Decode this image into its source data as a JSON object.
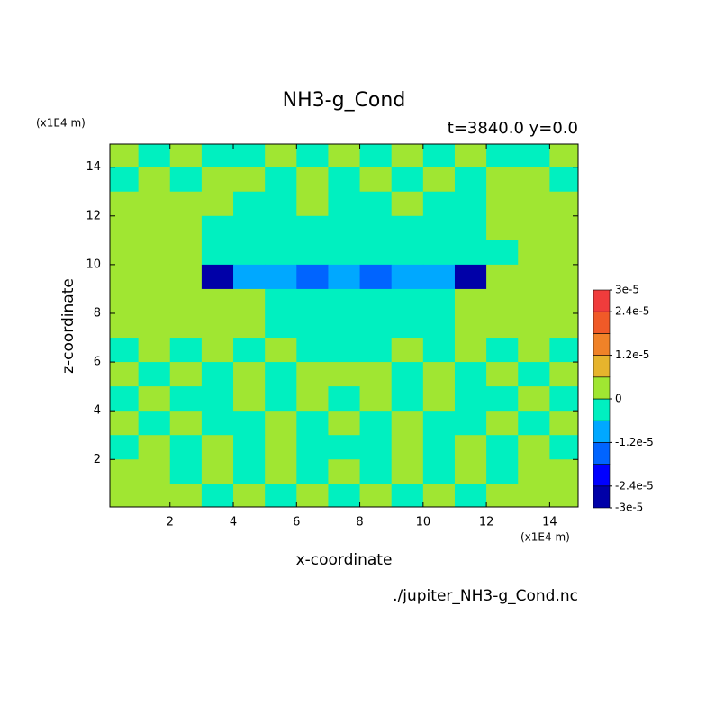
{
  "chart_data": {
    "type": "contour",
    "title": "NH3-g_Cond",
    "subtitle": "t=3840.0 y=0.0",
    "x_unit": "(x1E4 m)",
    "y_unit": "(x1E4 m)",
    "xlabel": "x-coordinate",
    "ylabel": "z-coordinate",
    "source": "./jupiter_NH3-g_Cond.nc",
    "xlim": [
      0.1,
      14.9
    ],
    "ylim": [
      0.05,
      14.95
    ],
    "xticks": [
      2,
      4,
      6,
      8,
      10,
      12,
      14
    ],
    "yticks": [
      2,
      4,
      6,
      8,
      10,
      12,
      14
    ],
    "x": [
      0.5,
      1.5,
      2.5,
      3.5,
      4.5,
      5.5,
      6.5,
      7.5,
      8.5,
      9.5,
      10.5,
      11.5,
      12.5,
      13.5,
      14.5
    ],
    "z": [
      14.5,
      13.5,
      12.5,
      11.5,
      10.5,
      9.5,
      8.5,
      7.5,
      6.5,
      5.5,
      4.5,
      3.5,
      2.5,
      1.5,
      0.5
    ],
    "z_values": [
      [
        3e-06,
        -3e-06,
        3e-06,
        -3e-06,
        -3e-06,
        3e-06,
        -3e-06,
        3e-06,
        -3e-06,
        3e-06,
        -3e-06,
        3e-06,
        -3e-06,
        -3e-06,
        3e-06
      ],
      [
        -3e-06,
        3e-06,
        -3e-06,
        3e-06,
        3e-06,
        -3e-06,
        3e-06,
        -3e-06,
        3e-06,
        -3e-06,
        3e-06,
        -3e-06,
        3e-06,
        3e-06,
        -3e-06
      ],
      [
        3e-06,
        3e-06,
        3e-06,
        3e-06,
        -3e-06,
        -3e-06,
        3e-06,
        -3e-06,
        -3e-06,
        3e-06,
        -3e-06,
        -3e-06,
        3e-06,
        3e-06,
        3e-06
      ],
      [
        3e-06,
        3e-06,
        3e-06,
        -3e-06,
        -3e-06,
        -3e-06,
        -3e-06,
        -3e-06,
        -3e-06,
        -3e-06,
        -3e-06,
        -3e-06,
        3e-06,
        3e-06,
        3e-06
      ],
      [
        3e-06,
        3e-06,
        3e-06,
        -3e-06,
        -3e-06,
        -3e-06,
        -3e-06,
        -3e-06,
        -3e-06,
        -3e-06,
        -3e-06,
        -3e-06,
        -3e-06,
        3e-06,
        3e-06
      ],
      [
        3e-06,
        3e-06,
        3e-06,
        -2.7e-05,
        -9e-06,
        -9e-06,
        -1.5e-05,
        -9e-06,
        -1.5e-05,
        -9e-06,
        -9e-06,
        -2.7e-05,
        3e-06,
        3e-06,
        3e-06
      ],
      [
        3e-06,
        3e-06,
        3e-06,
        3e-06,
        3e-06,
        -3e-06,
        -3e-06,
        -3e-06,
        -3e-06,
        -3e-06,
        -3e-06,
        3e-06,
        3e-06,
        3e-06,
        3e-06
      ],
      [
        3e-06,
        3e-06,
        3e-06,
        3e-06,
        3e-06,
        -3e-06,
        -3e-06,
        -3e-06,
        -3e-06,
        -3e-06,
        -3e-06,
        3e-06,
        3e-06,
        3e-06,
        3e-06
      ],
      [
        -3e-06,
        3e-06,
        -3e-06,
        3e-06,
        -3e-06,
        3e-06,
        -3e-06,
        -3e-06,
        -3e-06,
        3e-06,
        -3e-06,
        3e-06,
        -3e-06,
        3e-06,
        -3e-06
      ],
      [
        3e-06,
        -3e-06,
        3e-06,
        -3e-06,
        3e-06,
        -3e-06,
        3e-06,
        3e-06,
        3e-06,
        -3e-06,
        3e-06,
        -3e-06,
        3e-06,
        -3e-06,
        3e-06
      ],
      [
        -3e-06,
        3e-06,
        -3e-06,
        -3e-06,
        3e-06,
        -3e-06,
        3e-06,
        -3e-06,
        3e-06,
        -3e-06,
        3e-06,
        -3e-06,
        -3e-06,
        3e-06,
        -3e-06
      ],
      [
        3e-06,
        -3e-06,
        3e-06,
        -3e-06,
        -3e-06,
        3e-06,
        -3e-06,
        3e-06,
        -3e-06,
        3e-06,
        -3e-06,
        -3e-06,
        3e-06,
        -3e-06,
        3e-06
      ],
      [
        -3e-06,
        3e-06,
        -3e-06,
        3e-06,
        -3e-06,
        3e-06,
        -3e-06,
        -3e-06,
        -3e-06,
        3e-06,
        -3e-06,
        3e-06,
        -3e-06,
        3e-06,
        -3e-06
      ],
      [
        3e-06,
        3e-06,
        -3e-06,
        3e-06,
        -3e-06,
        3e-06,
        -3e-06,
        3e-06,
        -3e-06,
        3e-06,
        -3e-06,
        3e-06,
        -3e-06,
        3e-06,
        3e-06
      ],
      [
        3e-06,
        3e-06,
        3e-06,
        -3e-06,
        3e-06,
        -3e-06,
        3e-06,
        -3e-06,
        3e-06,
        -3e-06,
        3e-06,
        -3e-06,
        3e-06,
        3e-06,
        3e-06
      ]
    ],
    "levels": [
      -3e-05,
      -2.4e-05,
      -1.8e-05,
      -1.2e-05,
      -6e-06,
      0,
      6e-06,
      1.2e-05,
      1.8e-05,
      2.4e-05,
      3e-05
    ],
    "colors": [
      "#0000a8",
      "#0000ff",
      "#0064ff",
      "#00a8ff",
      "#00f0c0",
      "#a0e632",
      "#e6b42d",
      "#f08228",
      "#f05a28",
      "#f03c3c"
    ],
    "colorbar_ticks": [
      {
        "value": 3e-05,
        "label": "3e-5"
      },
      {
        "value": 2.4e-05,
        "label": "2.4e-5"
      },
      {
        "value": 1.2e-05,
        "label": "1.2e-5"
      },
      0,
      {
        "value": -1.2e-05,
        "label": "-1.2e-5"
      },
      {
        "value": -2.4e-05,
        "label": "-2.4e-5"
      },
      {
        "value": -3e-05,
        "label": "-3e-5"
      }
    ]
  }
}
